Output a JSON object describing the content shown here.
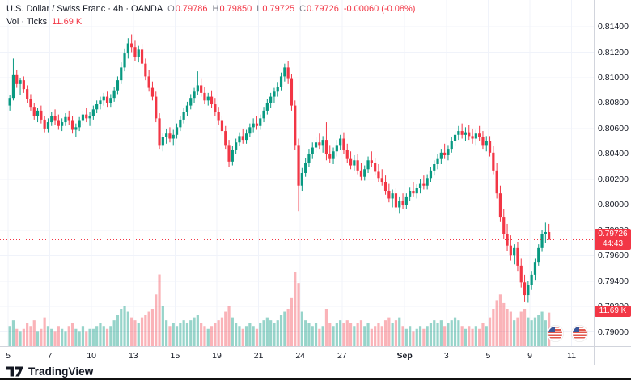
{
  "header": {
    "symbol_title": "U.S. Dollar / Swiss Franc · 4h · OANDA",
    "ohlc": {
      "o_label": "O",
      "o": "0.79786",
      "h_label": "H",
      "h": "0.79850",
      "l_label": "L",
      "l": "0.79725",
      "c_label": "C",
      "c": "0.79726",
      "change": "-0.00060 (-0.08%)"
    },
    "volume_label": "Vol · Ticks",
    "volume_value": "11.69 K"
  },
  "price_axis": {
    "tick_labels": [
      "0.81400",
      "0.81200",
      "0.81000",
      "0.80800",
      "0.80600",
      "0.80400",
      "0.80200",
      "0.80000",
      "0.79800",
      "0.79600",
      "0.79400",
      "0.79200",
      "0.79000"
    ],
    "last_price_badge": {
      "price": "0.79726",
      "countdown": "44:43"
    },
    "volume_badge": "11.69 K"
  },
  "logo": {
    "text": "TradingView"
  },
  "icons": {
    "event_flags": [
      "us-flag",
      "us-flag"
    ],
    "attribution": "tradingview-logo"
  },
  "chart_data": {
    "type": "candlestick",
    "title": "U.S. Dollar / Swiss Franc",
    "symbol": "USD/CHF",
    "interval": "4h",
    "exchange": "OANDA",
    "legend_last": {
      "open": 0.79786,
      "high": 0.7985,
      "low": 0.79725,
      "close": 0.79726,
      "change": -0.0006,
      "change_pct": -0.08
    },
    "last_price": 0.79726,
    "countdown": "44:43",
    "volume_last_k": 11.69,
    "volume_unit": "K ticks",
    "ylim": [
      0.7889,
      0.8161
    ],
    "vol_scale_max_k": 26,
    "grid": true,
    "colors": {
      "up": "#089981",
      "down": "#f23645",
      "vol_up": "rgba(8,153,129,0.42)",
      "vol_down": "rgba(242,54,69,0.38)",
      "grid": "#f0f3fa",
      "axis_text": "#131722",
      "badge": "#f23645"
    },
    "time_labels": [
      {
        "text": "5",
        "slot": 0
      },
      {
        "text": "7",
        "slot": 12
      },
      {
        "text": "10",
        "slot": 24
      },
      {
        "text": "13",
        "slot": 36
      },
      {
        "text": "15",
        "slot": 48
      },
      {
        "text": "19",
        "slot": 60
      },
      {
        "text": "21",
        "slot": 72
      },
      {
        "text": "24",
        "slot": 84
      },
      {
        "text": "27",
        "slot": 96
      },
      {
        "text": "Sep",
        "slot": 114,
        "bold": true
      },
      {
        "text": "3",
        "slot": 126
      },
      {
        "text": "5",
        "slot": 138
      },
      {
        "text": "9",
        "slot": 150
      },
      {
        "text": "11",
        "slot": 162
      }
    ],
    "columns": [
      "open",
      "high",
      "low",
      "close",
      "volume_k"
    ],
    "candles": [
      [
        0.8078,
        0.8086,
        0.8074,
        0.8084,
        7
      ],
      [
        0.8084,
        0.8115,
        0.8082,
        0.8102,
        9
      ],
      [
        0.8102,
        0.8106,
        0.8092,
        0.8095,
        6
      ],
      [
        0.8095,
        0.81,
        0.8086,
        0.8098,
        5
      ],
      [
        0.8098,
        0.8101,
        0.8088,
        0.8091,
        6
      ],
      [
        0.8091,
        0.8094,
        0.808,
        0.8083,
        8
      ],
      [
        0.8083,
        0.8087,
        0.8074,
        0.8077,
        7
      ],
      [
        0.8077,
        0.808,
        0.8067,
        0.807,
        9
      ],
      [
        0.807,
        0.8076,
        0.8065,
        0.8074,
        5
      ],
      [
        0.8074,
        0.8078,
        0.8064,
        0.8067,
        6
      ],
      [
        0.8067,
        0.807,
        0.8057,
        0.806,
        10
      ],
      [
        0.806,
        0.8068,
        0.8057,
        0.8065,
        7
      ],
      [
        0.8065,
        0.8073,
        0.8062,
        0.807,
        6
      ],
      [
        0.807,
        0.8075,
        0.8063,
        0.8066,
        5
      ],
      [
        0.8066,
        0.8071,
        0.8059,
        0.8062,
        7
      ],
      [
        0.8062,
        0.8068,
        0.8058,
        0.8065,
        6
      ],
      [
        0.8065,
        0.8072,
        0.8062,
        0.8069,
        5
      ],
      [
        0.8069,
        0.8074,
        0.8063,
        0.8066,
        7
      ],
      [
        0.8066,
        0.807,
        0.8056,
        0.8059,
        8
      ],
      [
        0.8059,
        0.8064,
        0.8053,
        0.8061,
        6
      ],
      [
        0.8061,
        0.8069,
        0.8058,
        0.8066,
        5
      ],
      [
        0.8066,
        0.8074,
        0.8063,
        0.8071,
        7
      ],
      [
        0.8071,
        0.8076,
        0.8065,
        0.8068,
        5
      ],
      [
        0.8068,
        0.8073,
        0.8062,
        0.807,
        6
      ],
      [
        0.807,
        0.8078,
        0.8067,
        0.8075,
        6
      ],
      [
        0.8075,
        0.8082,
        0.8072,
        0.8079,
        7
      ],
      [
        0.8079,
        0.8085,
        0.8075,
        0.8082,
        8
      ],
      [
        0.8082,
        0.8088,
        0.8078,
        0.8085,
        7
      ],
      [
        0.8085,
        0.8089,
        0.8077,
        0.808,
        6
      ],
      [
        0.808,
        0.8087,
        0.8077,
        0.8084,
        7
      ],
      [
        0.8084,
        0.8093,
        0.8081,
        0.809,
        9
      ],
      [
        0.809,
        0.8101,
        0.8087,
        0.8098,
        11
      ],
      [
        0.8098,
        0.8112,
        0.8095,
        0.8108,
        13
      ],
      [
        0.8108,
        0.8123,
        0.8105,
        0.8119,
        14
      ],
      [
        0.8119,
        0.8131,
        0.8115,
        0.8127,
        12
      ],
      [
        0.8127,
        0.8134,
        0.812,
        0.8124,
        10
      ],
      [
        0.8124,
        0.8129,
        0.8113,
        0.8116,
        9
      ],
      [
        0.8116,
        0.8125,
        0.8112,
        0.8122,
        8
      ],
      [
        0.8122,
        0.8126,
        0.8108,
        0.8111,
        10
      ],
      [
        0.8111,
        0.8115,
        0.8098,
        0.8101,
        11
      ],
      [
        0.8101,
        0.8106,
        0.8089,
        0.8092,
        12
      ],
      [
        0.8092,
        0.8097,
        0.8082,
        0.8085,
        13
      ],
      [
        0.8085,
        0.8089,
        0.8065,
        0.8068,
        18
      ],
      [
        0.8068,
        0.8072,
        0.8044,
        0.8047,
        25
      ],
      [
        0.8047,
        0.8056,
        0.8042,
        0.8053,
        14
      ],
      [
        0.8053,
        0.806,
        0.8048,
        0.8056,
        9
      ],
      [
        0.8056,
        0.8061,
        0.8049,
        0.8052,
        7
      ],
      [
        0.8052,
        0.8059,
        0.8047,
        0.8055,
        8
      ],
      [
        0.8055,
        0.8064,
        0.8052,
        0.8061,
        7
      ],
      [
        0.8061,
        0.807,
        0.8058,
        0.8067,
        8
      ],
      [
        0.8067,
        0.8076,
        0.8064,
        0.8073,
        9
      ],
      [
        0.8073,
        0.8081,
        0.807,
        0.8078,
        8
      ],
      [
        0.8078,
        0.8087,
        0.8075,
        0.8084,
        9
      ],
      [
        0.8084,
        0.8092,
        0.808,
        0.8089,
        10
      ],
      [
        0.8089,
        0.8105,
        0.8086,
        0.8094,
        11
      ],
      [
        0.8094,
        0.8099,
        0.8085,
        0.8088,
        8
      ],
      [
        0.8088,
        0.8093,
        0.8079,
        0.8082,
        7
      ],
      [
        0.8082,
        0.8088,
        0.8078,
        0.8085,
        6
      ],
      [
        0.8085,
        0.809,
        0.8076,
        0.8079,
        7
      ],
      [
        0.8079,
        0.8084,
        0.807,
        0.8073,
        8
      ],
      [
        0.8073,
        0.8077,
        0.8063,
        0.8066,
        9
      ],
      [
        0.8066,
        0.807,
        0.8055,
        0.8058,
        10
      ],
      [
        0.8058,
        0.8062,
        0.8044,
        0.8047,
        12
      ],
      [
        0.8047,
        0.8051,
        0.803,
        0.8034,
        14
      ],
      [
        0.8034,
        0.8046,
        0.8031,
        0.8043,
        10
      ],
      [
        0.8043,
        0.8052,
        0.804,
        0.8049,
        8
      ],
      [
        0.8049,
        0.8057,
        0.8046,
        0.8054,
        7
      ],
      [
        0.8054,
        0.806,
        0.8048,
        0.8051,
        6
      ],
      [
        0.8051,
        0.8059,
        0.8048,
        0.8056,
        7
      ],
      [
        0.8056,
        0.8064,
        0.8053,
        0.8061,
        8
      ],
      [
        0.8061,
        0.8068,
        0.8057,
        0.8064,
        7
      ],
      [
        0.8064,
        0.807,
        0.8059,
        0.8062,
        6
      ],
      [
        0.8062,
        0.8071,
        0.8059,
        0.8068,
        8
      ],
      [
        0.8068,
        0.8077,
        0.8065,
        0.8074,
        9
      ],
      [
        0.8074,
        0.8083,
        0.8071,
        0.808,
        10
      ],
      [
        0.808,
        0.8088,
        0.8076,
        0.8085,
        9
      ],
      [
        0.8085,
        0.8092,
        0.808,
        0.8089,
        8
      ],
      [
        0.8089,
        0.8096,
        0.8085,
        0.8093,
        9
      ],
      [
        0.8093,
        0.8104,
        0.809,
        0.8101,
        11
      ],
      [
        0.8101,
        0.8111,
        0.8097,
        0.8108,
        12
      ],
      [
        0.8108,
        0.8113,
        0.8095,
        0.8099,
        13
      ],
      [
        0.8099,
        0.8103,
        0.8074,
        0.8078,
        17
      ],
      [
        0.8078,
        0.8082,
        0.8043,
        0.8047,
        26
      ],
      [
        0.8047,
        0.8052,
        0.7995,
        0.8015,
        22
      ],
      [
        0.8015,
        0.8029,
        0.8011,
        0.8025,
        12
      ],
      [
        0.8025,
        0.8037,
        0.8022,
        0.8033,
        9
      ],
      [
        0.8033,
        0.8044,
        0.803,
        0.804,
        8
      ],
      [
        0.804,
        0.8049,
        0.8036,
        0.8045,
        7
      ],
      [
        0.8045,
        0.8053,
        0.8041,
        0.8049,
        8
      ],
      [
        0.8049,
        0.8056,
        0.8044,
        0.8047,
        6
      ],
      [
        0.8047,
        0.8054,
        0.8041,
        0.8051,
        7
      ],
      [
        0.8051,
        0.8065,
        0.8035,
        0.804,
        13
      ],
      [
        0.804,
        0.8047,
        0.8033,
        0.8036,
        8
      ],
      [
        0.8036,
        0.8045,
        0.8032,
        0.8042,
        7
      ],
      [
        0.8042,
        0.8051,
        0.8038,
        0.8047,
        8
      ],
      [
        0.8047,
        0.8055,
        0.8043,
        0.8052,
        9
      ],
      [
        0.8052,
        0.8057,
        0.804,
        0.8043,
        8
      ],
      [
        0.8043,
        0.8048,
        0.8033,
        0.8036,
        9
      ],
      [
        0.8036,
        0.8042,
        0.8028,
        0.8031,
        8
      ],
      [
        0.8031,
        0.8039,
        0.8027,
        0.8035,
        7
      ],
      [
        0.8035,
        0.804,
        0.8024,
        0.8027,
        8
      ],
      [
        0.8027,
        0.8033,
        0.8019,
        0.8022,
        9
      ],
      [
        0.8022,
        0.8031,
        0.8019,
        0.8028,
        7
      ],
      [
        0.8028,
        0.8038,
        0.8025,
        0.8035,
        8
      ],
      [
        0.8035,
        0.8042,
        0.803,
        0.8033,
        6
      ],
      [
        0.8033,
        0.8037,
        0.8023,
        0.8026,
        7
      ],
      [
        0.8026,
        0.8032,
        0.8018,
        0.8021,
        8
      ],
      [
        0.8021,
        0.8028,
        0.8015,
        0.8018,
        7
      ],
      [
        0.8018,
        0.8023,
        0.8008,
        0.8011,
        9
      ],
      [
        0.8011,
        0.8017,
        0.8002,
        0.8005,
        10
      ],
      [
        0.8005,
        0.8012,
        0.7998,
        0.8009,
        8
      ],
      [
        0.8009,
        0.8013,
        0.7995,
        0.7998,
        9
      ],
      [
        0.7998,
        0.8006,
        0.7993,
        0.8003,
        10
      ],
      [
        0.8003,
        0.8009,
        0.7997,
        0.8,
        7
      ],
      [
        0.8,
        0.8009,
        0.7997,
        0.8006,
        6
      ],
      [
        0.8006,
        0.8014,
        0.8003,
        0.8011,
        7
      ],
      [
        0.8011,
        0.8018,
        0.8006,
        0.8009,
        5
      ],
      [
        0.8009,
        0.8016,
        0.8005,
        0.8013,
        6
      ],
      [
        0.8013,
        0.802,
        0.8009,
        0.8017,
        7
      ],
      [
        0.8017,
        0.8023,
        0.8012,
        0.8015,
        6
      ],
      [
        0.8015,
        0.8024,
        0.8012,
        0.8021,
        7
      ],
      [
        0.8021,
        0.803,
        0.8018,
        0.8027,
        8
      ],
      [
        0.8027,
        0.8035,
        0.8023,
        0.8032,
        9
      ],
      [
        0.8032,
        0.804,
        0.8028,
        0.8036,
        8
      ],
      [
        0.8036,
        0.8044,
        0.8032,
        0.8041,
        9
      ],
      [
        0.8041,
        0.8048,
        0.8036,
        0.8039,
        7
      ],
      [
        0.8039,
        0.8047,
        0.8035,
        0.8044,
        8
      ],
      [
        0.8044,
        0.8053,
        0.8041,
        0.805,
        9
      ],
      [
        0.805,
        0.8058,
        0.8046,
        0.8055,
        10
      ],
      [
        0.8055,
        0.8062,
        0.8051,
        0.8058,
        9
      ],
      [
        0.8058,
        0.8064,
        0.8052,
        0.8055,
        7
      ],
      [
        0.8055,
        0.8061,
        0.805,
        0.8057,
        6
      ],
      [
        0.8057,
        0.8063,
        0.8051,
        0.8054,
        7
      ],
      [
        0.8054,
        0.806,
        0.8048,
        0.8052,
        6
      ],
      [
        0.8052,
        0.8059,
        0.8047,
        0.8056,
        7
      ],
      [
        0.8056,
        0.8062,
        0.805,
        0.8053,
        6
      ],
      [
        0.8053,
        0.8058,
        0.8044,
        0.8047,
        8
      ],
      [
        0.8047,
        0.8054,
        0.8042,
        0.805,
        7
      ],
      [
        0.805,
        0.8054,
        0.8038,
        0.8041,
        10
      ],
      [
        0.8041,
        0.8046,
        0.8024,
        0.8027,
        13
      ],
      [
        0.8027,
        0.8033,
        0.8005,
        0.8009,
        16
      ],
      [
        0.8009,
        0.8015,
        0.7987,
        0.799,
        18
      ],
      [
        0.799,
        0.7997,
        0.7973,
        0.7977,
        15
      ],
      [
        0.7977,
        0.7985,
        0.7964,
        0.7968,
        13
      ],
      [
        0.7968,
        0.7976,
        0.7956,
        0.796,
        12
      ],
      [
        0.796,
        0.7969,
        0.7953,
        0.7966,
        9
      ],
      [
        0.7966,
        0.7971,
        0.7948,
        0.7952,
        10
      ],
      [
        0.7952,
        0.7958,
        0.7935,
        0.7939,
        12
      ],
      [
        0.7939,
        0.7945,
        0.7924,
        0.7929,
        13
      ],
      [
        0.7929,
        0.794,
        0.7923,
        0.7937,
        10
      ],
      [
        0.7937,
        0.7948,
        0.7933,
        0.7945,
        9
      ],
      [
        0.7945,
        0.7958,
        0.7941,
        0.7955,
        10
      ],
      [
        0.7955,
        0.7969,
        0.7952,
        0.7966,
        11
      ],
      [
        0.7966,
        0.798,
        0.7963,
        0.7977,
        12
      ],
      [
        0.7977,
        0.7986,
        0.797,
        0.79786,
        9
      ],
      [
        0.79786,
        0.7985,
        0.79725,
        0.79726,
        11.69
      ]
    ]
  }
}
